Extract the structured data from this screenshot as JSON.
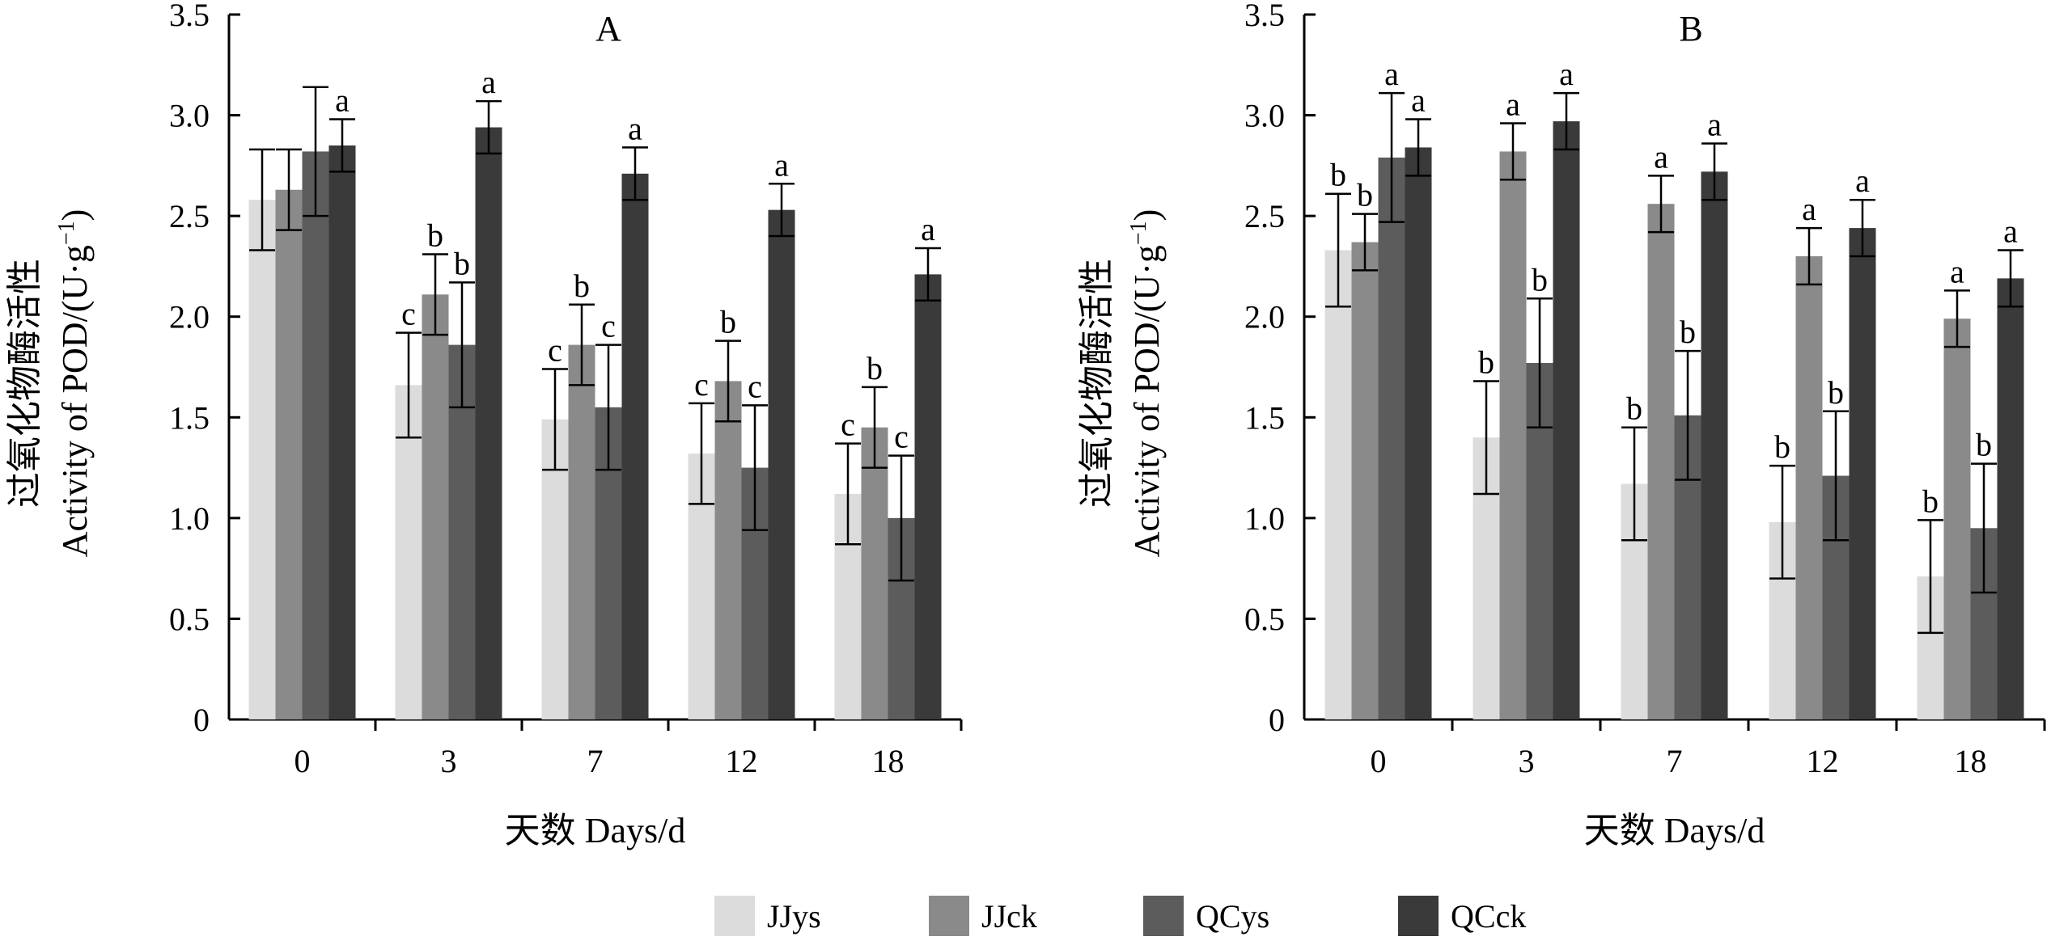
{
  "legend": [
    {
      "name": "JJys",
      "color": "#dcdcdc"
    },
    {
      "name": "JJck",
      "color": "#8a8a8a"
    },
    {
      "name": "QCys",
      "color": "#5c5c5c"
    },
    {
      "name": "QCck",
      "color": "#3a3a3a"
    }
  ],
  "chart_data": [
    {
      "type": "bar",
      "panel": "A",
      "categories": [
        "0",
        "3",
        "7",
        "12",
        "18"
      ],
      "ylabel_cn": "过氧化物酶活性",
      "ylabel_en_prefix": "Activity of POD/(U·g",
      "ylabel_en_sup": "−1",
      "ylabel_en_suffix": ")",
      "xlabel": "天数  Days/d",
      "ylim": [
        0,
        3.5
      ],
      "yticks": [
        "0",
        "0.5",
        "1.0",
        "1.5",
        "2.0",
        "2.5",
        "3.0",
        "3.5"
      ],
      "series": [
        {
          "name": "JJys",
          "values": [
            2.58,
            1.66,
            1.49,
            1.32,
            1.12
          ],
          "errors": [
            0.25,
            0.26,
            0.25,
            0.25,
            0.25
          ],
          "letters": [
            "",
            "c",
            "c",
            "c",
            "c"
          ]
        },
        {
          "name": "JJck",
          "values": [
            2.63,
            2.11,
            1.86,
            1.68,
            1.45
          ],
          "errors": [
            0.2,
            0.2,
            0.2,
            0.2,
            0.2
          ],
          "letters": [
            "",
            "b",
            "b",
            "b",
            "b"
          ]
        },
        {
          "name": "QCys",
          "values": [
            2.82,
            1.86,
            1.55,
            1.25,
            1.0
          ],
          "errors": [
            0.32,
            0.31,
            0.31,
            0.31,
            0.31
          ],
          "letters": [
            "",
            "b",
            "c",
            "c",
            "c"
          ]
        },
        {
          "name": "QCck",
          "values": [
            2.85,
            2.94,
            2.71,
            2.53,
            2.21
          ],
          "errors": [
            0.13,
            0.13,
            0.13,
            0.13,
            0.13
          ],
          "letters": [
            "a",
            "a",
            "a",
            "a",
            "a"
          ]
        }
      ]
    },
    {
      "type": "bar",
      "panel": "B",
      "categories": [
        "0",
        "3",
        "7",
        "12",
        "18"
      ],
      "ylabel_cn": "过氧化物酶活性",
      "ylabel_en_prefix": "Activity of POD/(U·g",
      "ylabel_en_sup": "−1",
      "ylabel_en_suffix": ")",
      "xlabel": "天数  Days/d",
      "ylim": [
        0,
        3.5
      ],
      "yticks": [
        "0",
        "0.5",
        "1.0",
        "1.5",
        "2.0",
        "2.5",
        "3.0",
        "3.5"
      ],
      "series": [
        {
          "name": "JJys",
          "values": [
            2.33,
            1.4,
            1.17,
            0.98,
            0.71
          ],
          "errors": [
            0.28,
            0.28,
            0.28,
            0.28,
            0.28
          ],
          "letters": [
            "b",
            "b",
            "b",
            "b",
            "b"
          ]
        },
        {
          "name": "JJck",
          "values": [
            2.37,
            2.82,
            2.56,
            2.3,
            1.99
          ],
          "errors": [
            0.14,
            0.14,
            0.14,
            0.14,
            0.14
          ],
          "letters": [
            "b",
            "a",
            "a",
            "a",
            "a"
          ]
        },
        {
          "name": "QCys",
          "values": [
            2.79,
            1.77,
            1.51,
            1.21,
            0.95
          ],
          "errors": [
            0.32,
            0.32,
            0.32,
            0.32,
            0.32
          ],
          "letters": [
            "a",
            "b",
            "b",
            "b",
            "b"
          ]
        },
        {
          "name": "QCck",
          "values": [
            2.84,
            2.97,
            2.72,
            2.44,
            2.19
          ],
          "errors": [
            0.14,
            0.14,
            0.14,
            0.14,
            0.14
          ],
          "letters": [
            "a",
            "a",
            "a",
            "a",
            "a"
          ]
        }
      ]
    }
  ]
}
